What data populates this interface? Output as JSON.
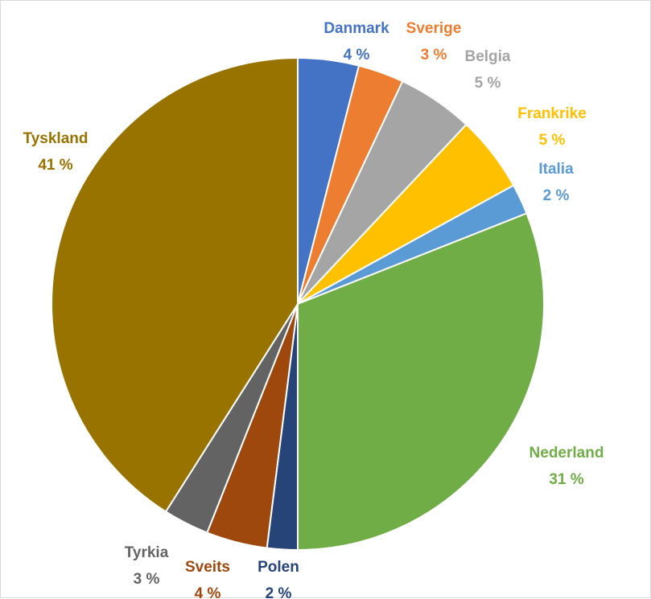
{
  "chart_data": {
    "type": "pie",
    "title": "",
    "legend": "none",
    "slices": [
      {
        "name": "Danmark",
        "value": 4,
        "label": "4 %",
        "color": "#4472C4"
      },
      {
        "name": "Sverige",
        "value": 3,
        "label": "3 %",
        "color": "#ED7D31"
      },
      {
        "name": "Belgia",
        "value": 5,
        "label": "5 %",
        "color": "#A5A5A5"
      },
      {
        "name": "Frankrike",
        "value": 5,
        "label": "5 %",
        "color": "#FFC000"
      },
      {
        "name": "Italia",
        "value": 2,
        "label": "2 %",
        "color": "#5B9BD5"
      },
      {
        "name": "Nederland",
        "value": 31,
        "label": "31 %",
        "color": "#70AD47"
      },
      {
        "name": "Polen",
        "value": 2,
        "label": "2 %",
        "color": "#264478"
      },
      {
        "name": "Sveits",
        "value": 4,
        "label": "4 %",
        "color": "#9E480E"
      },
      {
        "name": "Tyrkia",
        "value": 3,
        "label": "3 %",
        "color": "#636363"
      },
      {
        "name": "Tyskland",
        "value": 41,
        "label": "41 %",
        "color": "#997300"
      }
    ]
  }
}
